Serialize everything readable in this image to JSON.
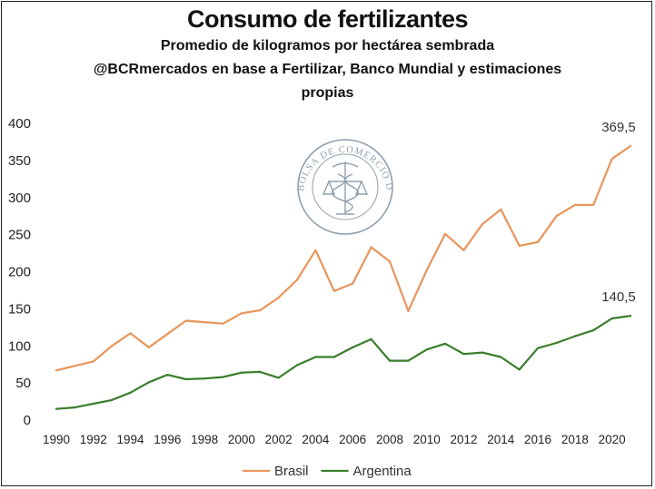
{
  "chart_data": {
    "type": "line",
    "title": "Consumo de fertilizantes",
    "subtitle_lines": [
      "Promedio de kilogramos por hectárea sembrada",
      "@BCRmercados en base a Fertilizar, Banco Mundial y estimaciones",
      "propias"
    ],
    "xlabel": "",
    "ylabel": "",
    "ylim": [
      0,
      400
    ],
    "yticks": [
      0,
      50,
      100,
      150,
      200,
      250,
      300,
      350,
      400
    ],
    "xlim": [
      1990,
      2021
    ],
    "xticks": [
      1990,
      1992,
      1994,
      1996,
      1998,
      2000,
      2002,
      2004,
      2006,
      2008,
      2010,
      2012,
      2014,
      2016,
      2018,
      2020
    ],
    "x": [
      1990,
      1991,
      1992,
      1993,
      1994,
      1995,
      1996,
      1997,
      1998,
      1999,
      2000,
      2001,
      2002,
      2003,
      2004,
      2005,
      2006,
      2007,
      2008,
      2009,
      2010,
      2011,
      2012,
      2013,
      2014,
      2015,
      2016,
      2017,
      2018,
      2019,
      2020,
      2021
    ],
    "series": [
      {
        "name": "Brasil",
        "color": "#e8955b",
        "values": [
          67,
          73,
          79,
          100,
          117,
          98,
          116,
          134,
          132,
          130,
          144,
          148,
          165,
          189,
          229,
          174,
          184,
          233,
          214,
          147,
          202,
          251,
          229,
          264,
          284,
          235,
          240,
          275,
          290,
          290,
          352,
          369.5
        ],
        "end_label": "369,5"
      },
      {
        "name": "Argentina",
        "color": "#3a7d2c",
        "values": [
          15,
          17,
          22,
          27,
          37,
          51,
          61,
          55,
          56,
          58,
          64,
          65,
          57,
          74,
          85,
          85,
          98,
          109,
          80,
          80,
          95,
          103,
          89,
          91,
          85,
          68,
          97,
          104,
          113,
          121,
          137,
          140.5
        ],
        "end_label": "140,5"
      }
    ],
    "legend_position": "bottom-center",
    "grid": false
  },
  "watermark": {
    "ring_text": "BOLSA DE COMERCIO DE ROSARIO",
    "color": "#6a7f93"
  }
}
